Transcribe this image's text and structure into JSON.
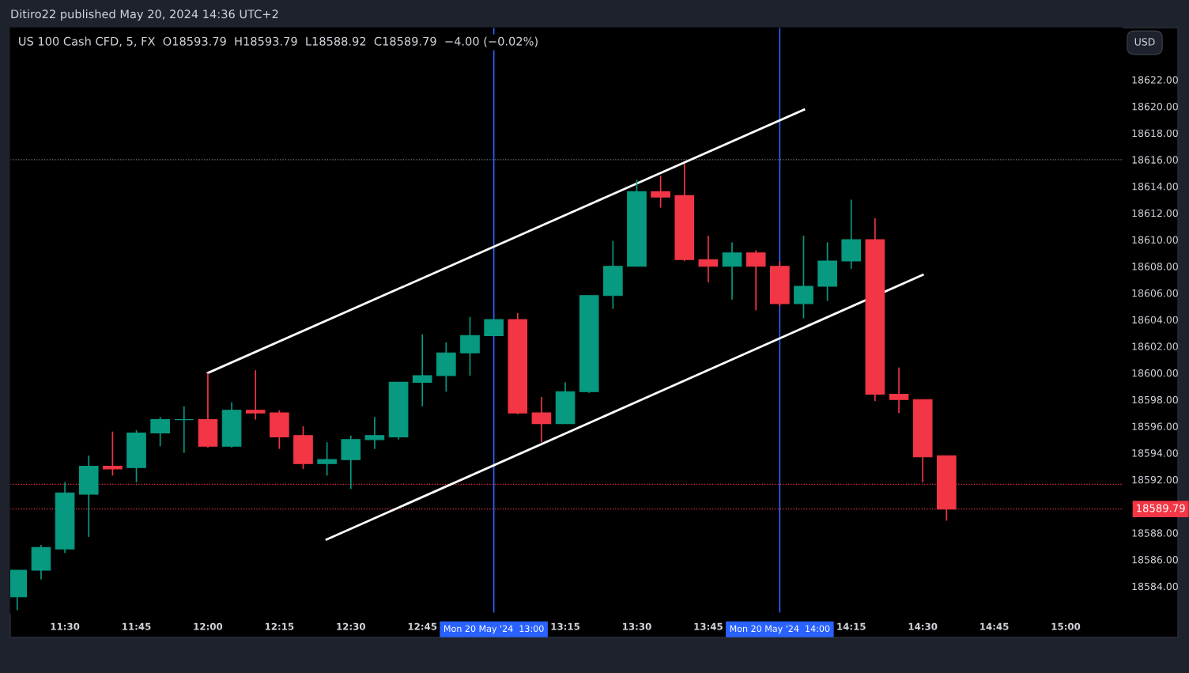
{
  "chart_data": {
    "type": "candlestick",
    "title": "Ditiro22 published May 20, 2024 14:36 UTC+2",
    "subtitle": "US 100 Cash CFD, 5, FX  O18593.79  H18593.79  L18588.92  C18589.79  −4.00 (−0.02%)",
    "annotations": [
      "USD"
    ],
    "x": [
      11.3333,
      11.4167,
      11.5,
      11.5833,
      11.6667,
      11.75,
      11.8333,
      11.9167,
      12,
      12.0833,
      12.1667,
      12.25,
      12.3333,
      12.4167,
      12.5,
      12.5833,
      12.6667,
      12.75,
      12.8333,
      12.9167,
      13,
      13.0833,
      13.1667,
      13.25,
      13.3333,
      13.4167,
      13.5,
      13.5833,
      13.6667,
      13.75,
      13.8333,
      13.9167,
      14,
      14.0833,
      14.1667,
      14.25,
      14.3333,
      14.4167,
      14.5,
      14.5833
    ],
    "ohlc": [
      [
        18583.2,
        18585.2,
        18582.2,
        18585.2
      ],
      [
        18585.2,
        18587.1,
        18584.5,
        18586.9
      ],
      [
        18586.8,
        18591.8,
        18586.5,
        18591.0
      ],
      [
        18590.9,
        18593.8,
        18587.7,
        18593.0
      ],
      [
        18593.0,
        18595.6,
        18592.3,
        18592.8
      ],
      [
        18592.9,
        18595.7,
        18591.8,
        18595.5
      ],
      [
        18595.5,
        18596.7,
        18594.5,
        18596.5
      ],
      [
        18596.5,
        18597.5,
        18594.0,
        18596.5
      ],
      [
        18596.5,
        18600.0,
        18594.4,
        18594.5
      ],
      [
        18594.5,
        18597.8,
        18594.4,
        18597.2
      ],
      [
        18597.2,
        18600.2,
        18596.5,
        18597.0
      ],
      [
        18597.0,
        18597.2,
        18594.3,
        18595.2
      ],
      [
        18595.3,
        18596.0,
        18592.8,
        18593.2
      ],
      [
        18593.2,
        18594.8,
        18592.3,
        18593.5
      ],
      [
        18593.5,
        18595.3,
        18591.3,
        18595.0
      ],
      [
        18595.0,
        18596.7,
        18594.3,
        18595.3
      ],
      [
        18595.2,
        18599.3,
        18595.0,
        18599.3
      ],
      [
        18599.3,
        18602.9,
        18597.5,
        18599.8
      ],
      [
        18599.8,
        18602.3,
        18598.6,
        18601.5
      ],
      [
        18601.5,
        18604.2,
        18599.8,
        18602.8
      ],
      [
        18602.8,
        18604.0,
        18602.8,
        18604.0
      ],
      [
        18604.0,
        18604.5,
        18596.9,
        18597.0
      ],
      [
        18597.0,
        18598.2,
        18594.8,
        18596.2
      ],
      [
        18596.2,
        18599.3,
        18596.2,
        18598.6
      ],
      [
        18598.6,
        18605.8,
        18598.5,
        18605.8
      ],
      [
        18605.8,
        18609.9,
        18604.8,
        18608.0
      ],
      [
        18608.0,
        18614.5,
        18608.0,
        18613.6
      ],
      [
        18613.6,
        18614.8,
        18612.4,
        18613.2
      ],
      [
        18613.3,
        18615.7,
        18608.4,
        18608.5
      ],
      [
        18608.5,
        18610.3,
        18606.8,
        18608.0
      ],
      [
        18608.0,
        18609.8,
        18605.5,
        18609.0
      ],
      [
        18609.0,
        18609.2,
        18604.7,
        18608.0
      ],
      [
        18608.0,
        18608.4,
        18605.0,
        18605.2
      ],
      [
        18605.2,
        18610.3,
        18604.1,
        18606.5
      ],
      [
        18606.5,
        18609.8,
        18605.4,
        18608.4
      ],
      [
        18608.4,
        18613.0,
        18607.8,
        18610.0
      ],
      [
        18610.0,
        18611.6,
        18597.9,
        18598.4
      ],
      [
        18598.4,
        18600.4,
        18597.0,
        18598.0
      ],
      [
        18598.0,
        18598.0,
        18591.8,
        18593.7
      ],
      [
        18593.79,
        18593.79,
        18588.92,
        18589.79
      ]
    ],
    "colors": [
      "#089981",
      "#089981",
      "#089981",
      "#089981",
      "#f23645",
      "#089981",
      "#089981",
      "#089981",
      "#f23645",
      "#089981",
      "#f23645",
      "#f23645",
      "#f23645",
      "#089981",
      "#089981",
      "#089981",
      "#089981",
      "#089981",
      "#089981",
      "#089981",
      "#089981",
      "#f23645",
      "#f23645",
      "#089981",
      "#089981",
      "#089981",
      "#089981",
      "#f23645",
      "#f23645",
      "#f23645",
      "#089981",
      "#f23645",
      "#f23645",
      "#089981",
      "#089981",
      "#089981",
      "#f23645",
      "#f23645",
      "#f23645",
      "#f23645"
    ],
    "series": [
      {
        "type": "line",
        "color": "#ffffff",
        "x": [
          12.0,
          14.085
        ],
        "values": [
          18600.0,
          18619.75
        ]
      },
      {
        "type": "line",
        "color": "#ffffff",
        "x": [
          12.415,
          14.5
        ],
        "values": [
          18587.5,
          18607.36
        ]
      }
    ],
    "xlim": [
      11.309,
      15.199
    ],
    "ylim": [
      18582.0,
      18625.9
    ],
    "xticks": [
      {
        "value": 11.5,
        "label": "11:30"
      },
      {
        "value": 11.75,
        "label": "11:45"
      },
      {
        "value": 12,
        "label": "12:00"
      },
      {
        "value": 12.25,
        "label": "12:15"
      },
      {
        "value": 12.5,
        "label": "12:30"
      },
      {
        "value": 12.75,
        "label": "12:45"
      },
      {
        "value": 13.25,
        "label": "13:15"
      },
      {
        "value": 13.5,
        "label": "13:30"
      },
      {
        "value": 13.75,
        "label": "13:45"
      },
      {
        "value": 14.25,
        "label": "14:15"
      },
      {
        "value": 14.5,
        "label": "14:30"
      },
      {
        "value": 14.75,
        "label": "14:45"
      },
      {
        "value": 15,
        "label": "15:00"
      }
    ],
    "yticks": [
      {
        "value": 18584,
        "label": "18584.00"
      },
      {
        "value": 18586,
        "label": "18586.00"
      },
      {
        "value": 18588,
        "label": "18588.00"
      },
      {
        "value": 18592,
        "label": "18592.00"
      },
      {
        "value": 18594,
        "label": "18594.00"
      },
      {
        "value": 18596,
        "label": "18596.00"
      },
      {
        "value": 18598,
        "label": "18598.00"
      },
      {
        "value": 18600,
        "label": "18600.00"
      },
      {
        "value": 18602,
        "label": "18602.00"
      },
      {
        "value": 18604,
        "label": "18604.00"
      },
      {
        "value": 18606,
        "label": "18606.00"
      },
      {
        "value": 18608,
        "label": "18608.00"
      },
      {
        "value": 18610,
        "label": "18610.00"
      },
      {
        "value": 18612,
        "label": "18612.00"
      },
      {
        "value": 18614,
        "label": "18614.00"
      },
      {
        "value": 18616,
        "label": "18616.00"
      },
      {
        "value": 18618,
        "label": "18618.00"
      },
      {
        "value": 18620,
        "label": "18620.00"
      },
      {
        "value": 18622,
        "label": "18622.00"
      }
    ],
    "ref_lines": [
      {
        "axis": "x",
        "value": 13,
        "label": "Mon 20 May '24  13:00",
        "color": "#2962ff",
        "line_style": "solid"
      },
      {
        "axis": "x",
        "value": 14,
        "label": "Mon 20 May '24  14:00",
        "color": "#2962ff",
        "line_style": "solid"
      },
      {
        "axis": "y",
        "value": 18616.0,
        "color": "#787b86",
        "line_style": "dotted"
      },
      {
        "axis": "y",
        "value": 18591.65,
        "color": "#f23645",
        "line_style": "dotted"
      },
      {
        "axis": "y",
        "value": 18589.79,
        "label": "18589.79",
        "color": "#f23645",
        "line_style": "dotted"
      }
    ],
    "grid": false,
    "legend": false
  }
}
